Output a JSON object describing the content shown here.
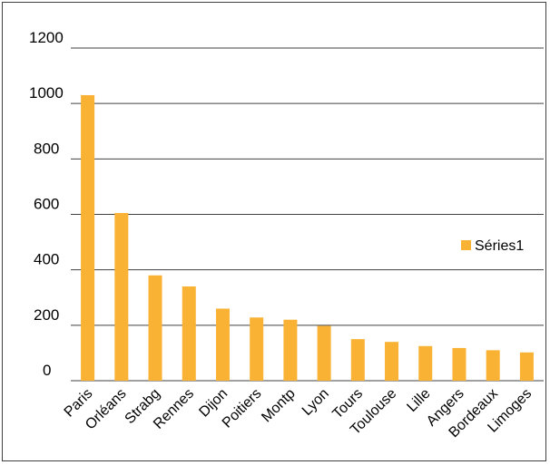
{
  "chart_data": {
    "type": "bar",
    "categories": [
      "Paris",
      "Orléans",
      "Strabg",
      "Rennes",
      "Dijon",
      "Poitiers",
      "Montp",
      "Lyon",
      "Tours",
      "Toulouse",
      "Lille",
      "Angers",
      "Bordeaux",
      "Limoges"
    ],
    "series": [
      {
        "name": "Séries1",
        "values": [
          1030,
          605,
          380,
          340,
          260,
          228,
          220,
          198,
          150,
          140,
          125,
          118,
          110,
          102
        ],
        "color": "#F9B233"
      }
    ],
    "ylim": [
      0,
      1200
    ],
    "yticks": [
      "0",
      "200",
      "400",
      "600",
      "800",
      "1000",
      "1200"
    ],
    "grid": true,
    "legend": "right"
  }
}
